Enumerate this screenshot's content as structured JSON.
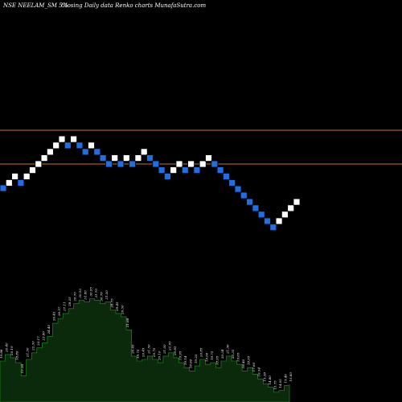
{
  "header": {
    "symbol_text": "NSE NEELAM_SM 5%",
    "description": "Closing Daily data Renko charts MunafaSutra.com"
  },
  "colors": {
    "background": "#000000",
    "up_brick": "#ffffff",
    "down_brick": "#1e6fe6",
    "brick_border": "#000000",
    "ref_line": "#c8780a",
    "volume_fill": "#0b2a0b",
    "volume_stroke": "#1aa01a",
    "volume_text": "#ffffff"
  },
  "chart_data": {
    "type": "renko",
    "brick_size_note": "5%",
    "y_scale": "log",
    "reference_lines": [
      34.2,
      29.7
    ],
    "bricks": [
      {
        "dir": "down",
        "close": 26.85
      },
      {
        "dir": "up",
        "close": 27.45
      },
      {
        "dir": "up",
        "close": 28.2
      },
      {
        "dir": "down",
        "close": 27.45
      },
      {
        "dir": "up",
        "close": 28.2
      },
      {
        "dir": "up",
        "close": 28.95
      },
      {
        "dir": "up",
        "close": 29.7
      },
      {
        "dir": "up",
        "close": 30.45
      },
      {
        "dir": "up",
        "close": 31.25
      },
      {
        "dir": "up",
        "close": 32.1
      },
      {
        "dir": "up",
        "close": 32.95
      },
      {
        "dir": "down",
        "close": 32.1
      },
      {
        "dir": "up",
        "close": 32.95
      },
      {
        "dir": "down",
        "close": 32.1
      },
      {
        "dir": "down",
        "close": 31.25
      },
      {
        "dir": "up",
        "close": 32.1
      },
      {
        "dir": "down",
        "close": 31.25
      },
      {
        "dir": "down",
        "close": 30.45
      },
      {
        "dir": "down",
        "close": 29.7
      },
      {
        "dir": "up",
        "close": 30.45
      },
      {
        "dir": "down",
        "close": 29.7
      },
      {
        "dir": "up",
        "close": 30.45
      },
      {
        "dir": "down",
        "close": 29.7
      },
      {
        "dir": "up",
        "close": 30.45
      },
      {
        "dir": "up",
        "close": 31.25
      },
      {
        "dir": "down",
        "close": 30.45
      },
      {
        "dir": "down",
        "close": 29.7
      },
      {
        "dir": "down",
        "close": 28.95
      },
      {
        "dir": "down",
        "close": 28.2
      },
      {
        "dir": "up",
        "close": 28.95
      },
      {
        "dir": "up",
        "close": 29.7
      },
      {
        "dir": "down",
        "close": 28.95
      },
      {
        "dir": "up",
        "close": 29.7
      },
      {
        "dir": "down",
        "close": 28.95
      },
      {
        "dir": "up",
        "close": 29.7
      },
      {
        "dir": "up",
        "close": 30.45
      },
      {
        "dir": "down",
        "close": 29.7
      },
      {
        "dir": "down",
        "close": 28.95
      },
      {
        "dir": "down",
        "close": 28.2
      },
      {
        "dir": "down",
        "close": 27.45
      },
      {
        "dir": "down",
        "close": 26.75
      },
      {
        "dir": "down",
        "close": 26.05
      },
      {
        "dir": "down",
        "close": 25.35
      },
      {
        "dir": "down",
        "close": 24.7
      },
      {
        "dir": "down",
        "close": 24.05
      },
      {
        "dir": "down",
        "close": 23.4
      },
      {
        "dir": "down",
        "close": 22.8
      },
      {
        "dir": "up",
        "close": 23.4
      },
      {
        "dir": "up",
        "close": 24.05
      },
      {
        "dir": "up",
        "close": 24.7
      },
      {
        "dir": "up",
        "close": 25.35
      }
    ],
    "volume_labels": [
      "19.88",
      "20.40",
      "20.19",
      "18.89",
      "19.38",
      "21.30",
      "22.30",
      "23.17",
      "23.80",
      "24.40",
      "26.43",
      "26.57",
      "27.11",
      "28.25",
      "29.70",
      "30.53",
      "31.80",
      "30.95",
      "31.70",
      "30.76",
      "31.30",
      "28.75",
      "29.45",
      "26.30",
      "21.68",
      "20.65",
      "19.75",
      "20.45",
      "21.50",
      "20.75",
      "20.10",
      "21.00",
      "21.95",
      "20.85",
      "19.95",
      "19.14",
      "18.60",
      "19.23",
      "20.85",
      "19.60",
      "19.75",
      "18.95",
      "20.34",
      "21.36",
      "20.35",
      "19.65",
      "18.40",
      "18.95",
      "17.60",
      "16.54",
      "15.38",
      "14.80",
      "13.75",
      "14.05",
      "15.46",
      "15.80"
    ],
    "volume_values": [
      12.5,
      14.5,
      13.5,
      12.0,
      8.0,
      13.0,
      15.0,
      16.5,
      18.0,
      20.0,
      24.0,
      25.5,
      27.0,
      28.5,
      30.0,
      31.0,
      30.5,
      31.5,
      31.0,
      30.0,
      30.5,
      28.0,
      27.0,
      26.0,
      22.0,
      14.0,
      12.5,
      13.0,
      14.0,
      13.0,
      12.0,
      14.0,
      15.0,
      13.5,
      12.0,
      10.5,
      9.5,
      11.0,
      13.0,
      11.5,
      12.0,
      10.5,
      12.5,
      14.0,
      12.5,
      11.5,
      9.5,
      10.5,
      8.5,
      7.0,
      5.5,
      4.5,
      3.0,
      3.5,
      5.0,
      5.5
    ],
    "volume_max": 38
  }
}
